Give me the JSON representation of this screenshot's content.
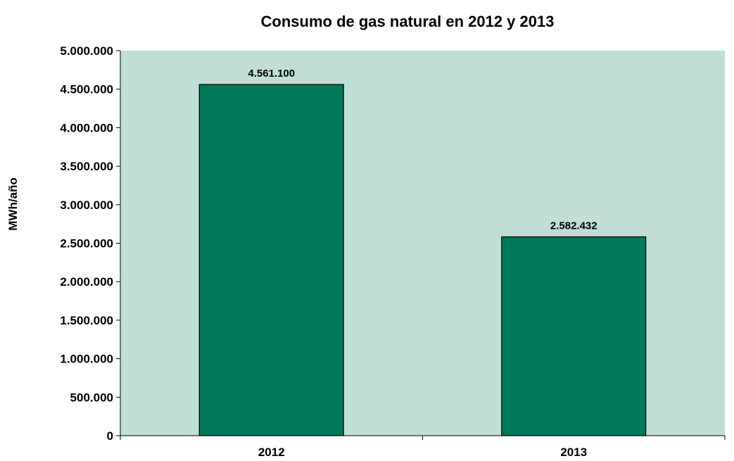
{
  "chart_data": {
    "type": "bar",
    "title": "Consumo de gas natural en 2012 y 2013",
    "xlabel": "",
    "ylabel": "MWh/año",
    "categories": [
      "2012",
      "2013"
    ],
    "values": [
      4561100,
      2582432
    ],
    "data_labels": [
      "4.561.100",
      "2.582.432"
    ],
    "ylim": [
      0,
      5000000
    ],
    "yticks": [
      0,
      500000,
      1000000,
      1500000,
      2000000,
      2500000,
      3000000,
      3500000,
      4000000,
      4500000,
      5000000
    ],
    "ytick_labels": [
      "0",
      "500.000",
      "1.000.000",
      "1.500.000",
      "2.000.000",
      "2.500.000",
      "3.000.000",
      "3.500.000",
      "4.000.000",
      "4.500.000",
      "5.000.000"
    ],
    "grid": false,
    "legend": "none",
    "colors": {
      "plot_background": "#c0ded6",
      "bar_fill": "#00785a",
      "bar_stroke": "#000000"
    }
  }
}
